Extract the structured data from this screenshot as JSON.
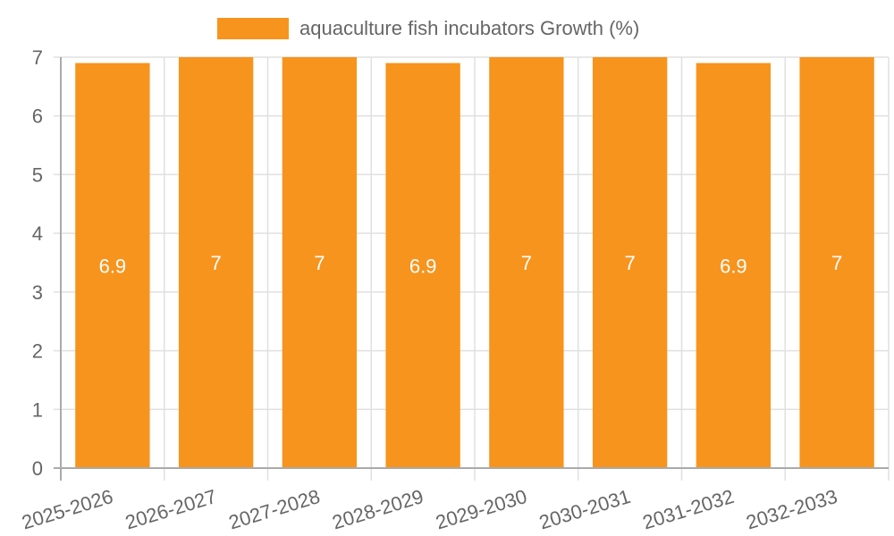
{
  "chart_data": {
    "type": "bar",
    "title": "",
    "legend": [
      "aquaculture fish incubators Growth (%)"
    ],
    "legend_position": "top",
    "categories": [
      "2025-2026",
      "2026-2027",
      "2027-2028",
      "2028-2029",
      "2029-2030",
      "2030-2031",
      "2031-2032",
      "2032-2033"
    ],
    "series": [
      {
        "name": "aquaculture fish incubators Growth (%)",
        "color": "#f7941d",
        "values": [
          6.9,
          7,
          7,
          6.9,
          7,
          7,
          6.9,
          7
        ]
      }
    ],
    "value_labels": [
      "6.9",
      "7",
      "7",
      "6.9",
      "7",
      "7",
      "6.9",
      "7"
    ],
    "xlabel": "",
    "ylabel": "",
    "ylim": [
      0,
      7
    ],
    "yticks": [
      "0",
      "1",
      "2",
      "3",
      "4",
      "5",
      "6",
      "7"
    ],
    "grid": true
  },
  "legend": {
    "label": "aquaculture fish incubators Growth (%)",
    "color": "#f7941d"
  }
}
